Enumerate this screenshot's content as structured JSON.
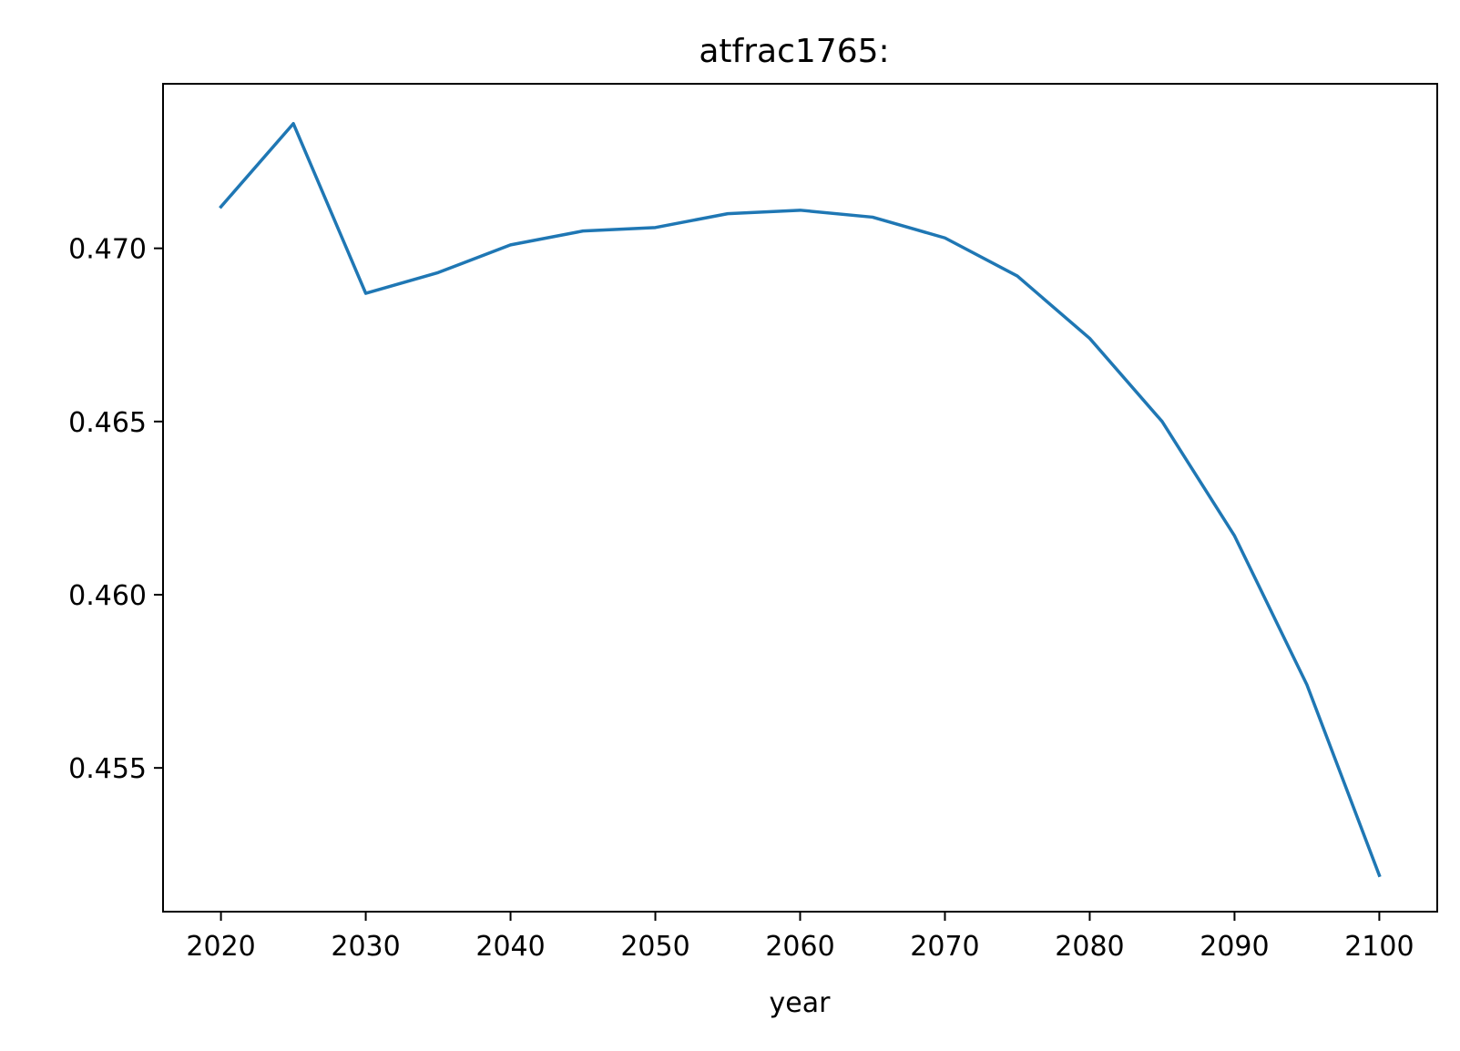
{
  "chart_data": {
    "type": "line",
    "title": "atfrac1765:",
    "xlabel": "year",
    "ylabel": "",
    "xlim": [
      2016,
      2104
    ],
    "ylim": [
      0.45085,
      0.47475
    ],
    "grid": false,
    "legend": "none",
    "colors": {
      "line": "#1f77b4",
      "axes": "#000000",
      "background": "#ffffff"
    },
    "x_ticks": [
      2020,
      2030,
      2040,
      2050,
      2060,
      2070,
      2080,
      2090,
      2100
    ],
    "x_tick_labels": [
      "2020",
      "2030",
      "2040",
      "2050",
      "2060",
      "2070",
      "2080",
      "2090",
      "2100"
    ],
    "y_ticks": [
      0.455,
      0.46,
      0.465,
      0.47
    ],
    "y_tick_labels": [
      "0.455",
      "0.460",
      "0.465",
      "0.470"
    ],
    "series": [
      {
        "x": [
          2020,
          2025,
          2030,
          2035,
          2040,
          2045,
          2050,
          2055,
          2060,
          2065,
          2070,
          2075,
          2080,
          2085,
          2090,
          2095,
          2100
        ],
        "y": [
          0.4712,
          0.4736,
          0.4687,
          0.4693,
          0.4701,
          0.4705,
          0.4706,
          0.471,
          0.4711,
          0.4709,
          0.4703,
          0.4692,
          0.4674,
          0.465,
          0.4617,
          0.4574,
          0.4519
        ]
      }
    ]
  }
}
